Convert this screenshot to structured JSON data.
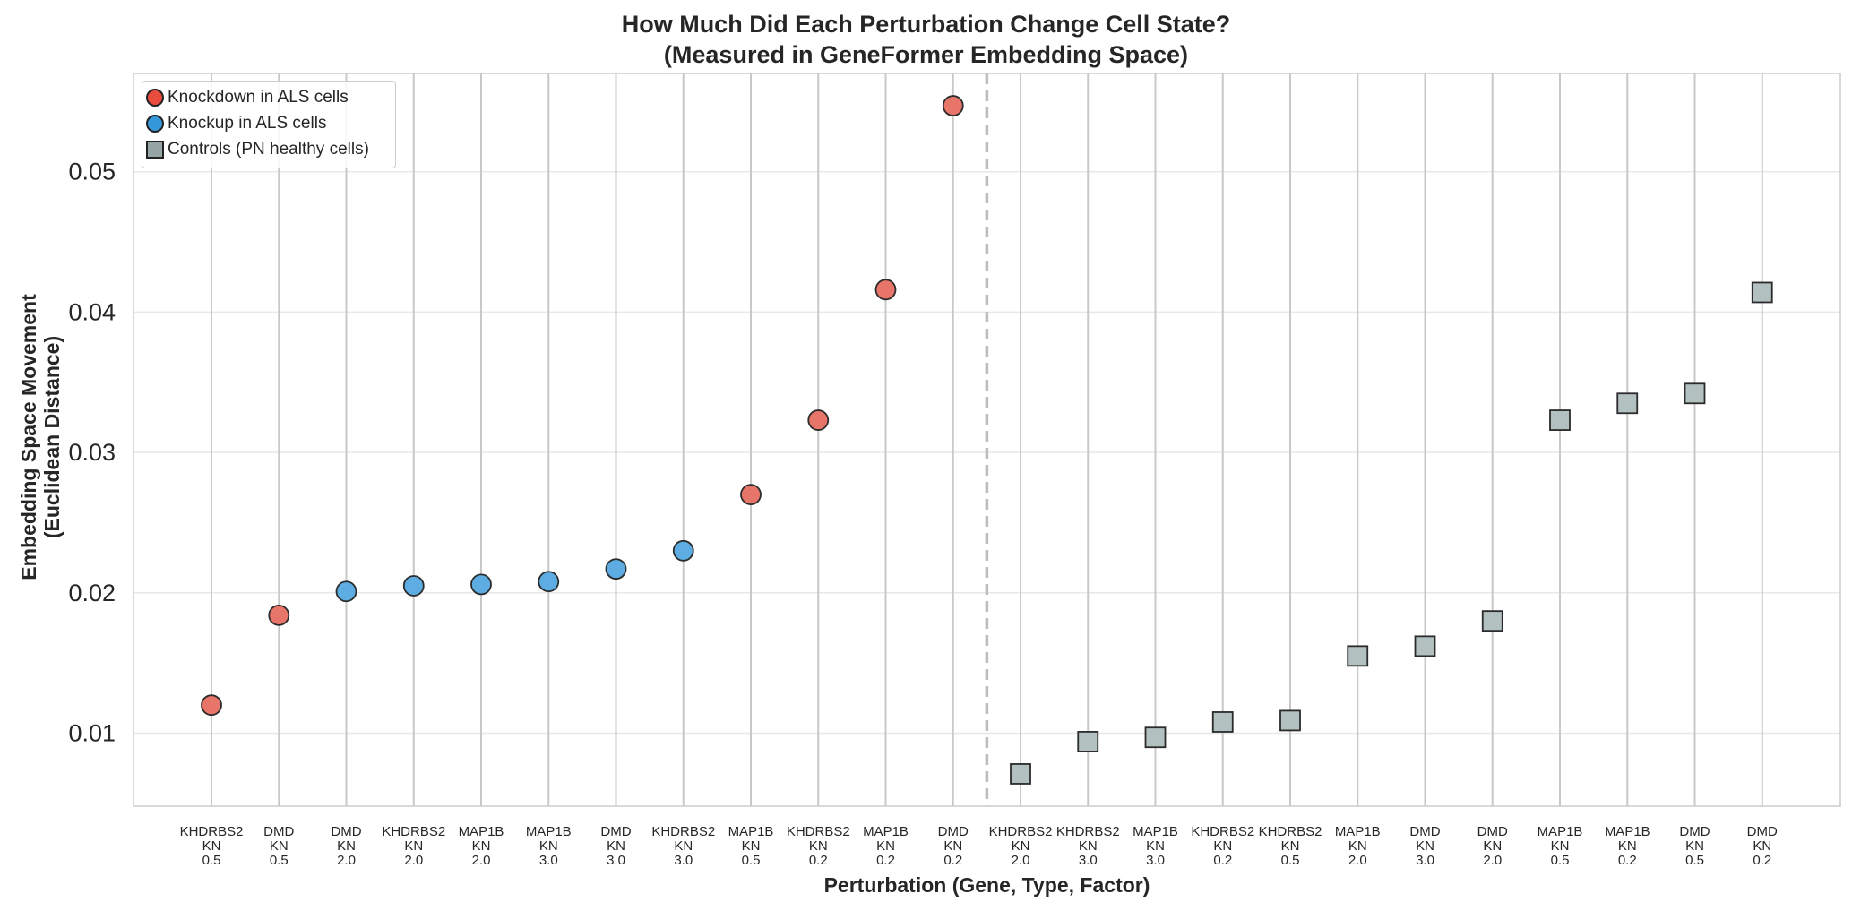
{
  "chart_data": {
    "type": "scatter",
    "title": "How Much Did Each Perturbation Change Cell State?",
    "subtitle": "(Measured in GeneFormer Embedding Space)",
    "xlabel": "Perturbation (Gene, Type, Factor)",
    "ylabel_line1": "Embedding Space Movement",
    "ylabel_line2": "(Euclidean Distance)",
    "ylim": [
      0.0048,
      0.057
    ],
    "yticks": [
      "0.01",
      "0.02",
      "0.03",
      "0.04",
      "0.05"
    ],
    "ytick_values": [
      0.01,
      0.02,
      0.03,
      0.04,
      0.05
    ],
    "grid": true,
    "legend_position": "top-left",
    "colors": {
      "knockdown": "#e8756a",
      "knockup": "#5dade2",
      "control": "#b3c0c0",
      "marker_edge": "#2b2b2b",
      "grid": "#e8e8e8",
      "stem": "#c8c8c8",
      "divider": "#bdbdbd"
    },
    "legend": [
      {
        "label": "Knockdown in ALS cells",
        "series": "knockdown",
        "swatch": "#e74c3c",
        "marker": "circle"
      },
      {
        "label": "Knockup in ALS cells",
        "series": "knockup",
        "swatch": "#3498db",
        "marker": "circle"
      },
      {
        "label": "Controls (PN healthy cells)",
        "series": "control",
        "swatch": "#95a5a6",
        "marker": "square"
      }
    ],
    "points": [
      {
        "gene": "KHDRBS2",
        "type": "KN",
        "factor": "0.5",
        "value": 0.012,
        "series": "knockdown"
      },
      {
        "gene": "DMD",
        "type": "KN",
        "factor": "0.5",
        "value": 0.0184,
        "series": "knockdown"
      },
      {
        "gene": "DMD",
        "type": "KN",
        "factor": "2.0",
        "value": 0.0201,
        "series": "knockup"
      },
      {
        "gene": "KHDRBS2",
        "type": "KN",
        "factor": "2.0",
        "value": 0.0205,
        "series": "knockup"
      },
      {
        "gene": "MAP1B",
        "type": "KN",
        "factor": "2.0",
        "value": 0.0206,
        "series": "knockup"
      },
      {
        "gene": "MAP1B",
        "type": "KN",
        "factor": "3.0",
        "value": 0.0208,
        "series": "knockup"
      },
      {
        "gene": "DMD",
        "type": "KN",
        "factor": "3.0",
        "value": 0.0217,
        "series": "knockup"
      },
      {
        "gene": "KHDRBS2",
        "type": "KN",
        "factor": "3.0",
        "value": 0.023,
        "series": "knockup"
      },
      {
        "gene": "MAP1B",
        "type": "KN",
        "factor": "0.5",
        "value": 0.027,
        "series": "knockdown"
      },
      {
        "gene": "KHDRBS2",
        "type": "KN",
        "factor": "0.2",
        "value": 0.0323,
        "series": "knockdown"
      },
      {
        "gene": "MAP1B",
        "type": "KN",
        "factor": "0.2",
        "value": 0.0416,
        "series": "knockdown"
      },
      {
        "gene": "DMD",
        "type": "KN",
        "factor": "0.2",
        "value": 0.0547,
        "series": "knockdown"
      },
      {
        "gene": "KHDRBS2",
        "type": "KN",
        "factor": "2.0",
        "value": 0.0071,
        "series": "control"
      },
      {
        "gene": "KHDRBS2",
        "type": "KN",
        "factor": "3.0",
        "value": 0.0094,
        "series": "control"
      },
      {
        "gene": "MAP1B",
        "type": "KN",
        "factor": "3.0",
        "value": 0.0097,
        "series": "control"
      },
      {
        "gene": "KHDRBS2",
        "type": "KN",
        "factor": "0.2",
        "value": 0.0108,
        "series": "control"
      },
      {
        "gene": "KHDRBS2",
        "type": "KN",
        "factor": "0.5",
        "value": 0.0109,
        "series": "control"
      },
      {
        "gene": "MAP1B",
        "type": "KN",
        "factor": "2.0",
        "value": 0.0155,
        "series": "control"
      },
      {
        "gene": "DMD",
        "type": "KN",
        "factor": "3.0",
        "value": 0.0162,
        "series": "control"
      },
      {
        "gene": "DMD",
        "type": "KN",
        "factor": "2.0",
        "value": 0.018,
        "series": "control"
      },
      {
        "gene": "MAP1B",
        "type": "KN",
        "factor": "0.5",
        "value": 0.0323,
        "series": "control"
      },
      {
        "gene": "MAP1B",
        "type": "KN",
        "factor": "0.2",
        "value": 0.0335,
        "series": "control"
      },
      {
        "gene": "DMD",
        "type": "KN",
        "factor": "0.5",
        "value": 0.0342,
        "series": "control"
      },
      {
        "gene": "DMD",
        "type": "KN",
        "factor": "0.2",
        "value": 0.0414,
        "series": "control"
      }
    ]
  }
}
